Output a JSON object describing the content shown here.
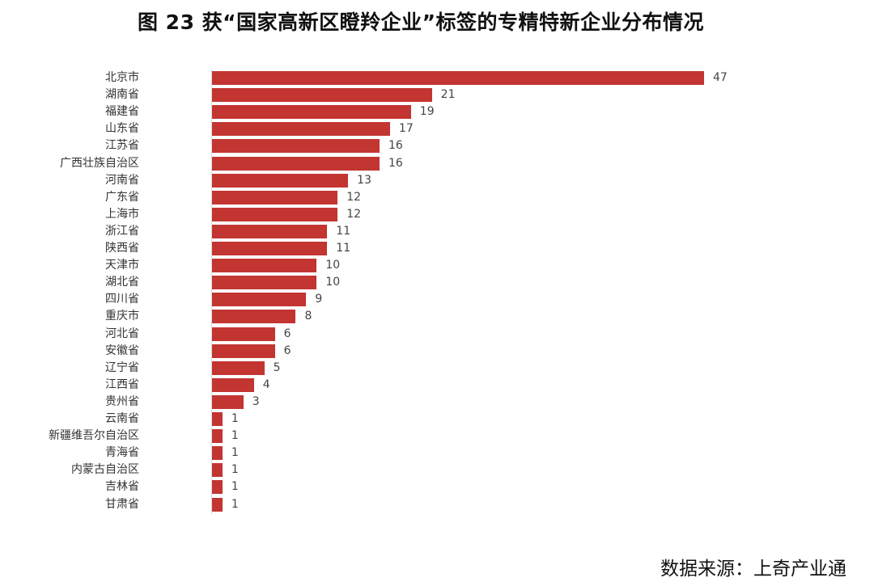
{
  "title": "图 23  获“国家高新区瞪羚企业”标签的专精特新企业分布情况",
  "source": "数据来源：上奇产业通",
  "colors": {
    "bar": "#c23531",
    "text": "#333333",
    "axis": "#d9d9d9"
  },
  "chart_data": {
    "type": "bar",
    "orientation": "horizontal",
    "title": "图 23  获“国家高新区瞪羚企业”标签的专精特新企业分布情况",
    "xlabel": "",
    "ylabel": "",
    "xlim": [
      0,
      47
    ],
    "grid": false,
    "legend": null,
    "data_labels": true,
    "categories": [
      "北京市",
      "湖南省",
      "福建省",
      "山东省",
      "江苏省",
      "广西壮族自治区",
      "河南省",
      "广东省",
      "上海市",
      "浙江省",
      "陕西省",
      "天津市",
      "湖北省",
      "四川省",
      "重庆市",
      "河北省",
      "安徽省",
      "辽宁省",
      "江西省",
      "贵州省",
      "云南省",
      "新疆维吾尔自治区",
      "青海省",
      "内蒙古自治区",
      "吉林省",
      "甘肃省"
    ],
    "values": [
      47,
      21,
      19,
      17,
      16,
      16,
      13,
      12,
      12,
      11,
      11,
      10,
      10,
      9,
      8,
      6,
      6,
      5,
      4,
      3,
      1,
      1,
      1,
      1,
      1,
      1
    ],
    "source": "数据来源：上奇产业通"
  }
}
